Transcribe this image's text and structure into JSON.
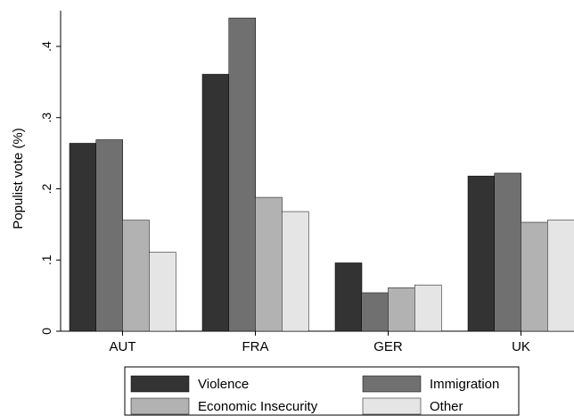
{
  "chart_data": {
    "type": "bar",
    "title": "",
    "xlabel": "",
    "ylabel": "Populist vote (%)",
    "ylim": [
      0,
      0.45
    ],
    "yticks": [
      {
        "value": 0,
        "label": "0"
      },
      {
        "value": 0.1,
        "label": ".1"
      },
      {
        "value": 0.2,
        "label": ".2"
      },
      {
        "value": 0.3,
        "label": ".3"
      },
      {
        "value": 0.4,
        "label": ".4"
      }
    ],
    "categories": [
      "AUT",
      "FRA",
      "GER",
      "UK"
    ],
    "series": [
      {
        "name": "Violence",
        "color": "#333333",
        "values": [
          0.264,
          0.361,
          0.096,
          0.218
        ]
      },
      {
        "name": "Immigration",
        "color": "#707070",
        "values": [
          0.269,
          0.44,
          0.054,
          0.222
        ]
      },
      {
        "name": "Economic Insecurity",
        "color": "#b2b2b2",
        "values": [
          0.156,
          0.188,
          0.061,
          0.153
        ]
      },
      {
        "name": "Other",
        "color": "#e5e5e5",
        "values": [
          0.111,
          0.168,
          0.065,
          0.156
        ]
      }
    ],
    "grid": false,
    "legend_position": "bottom"
  }
}
